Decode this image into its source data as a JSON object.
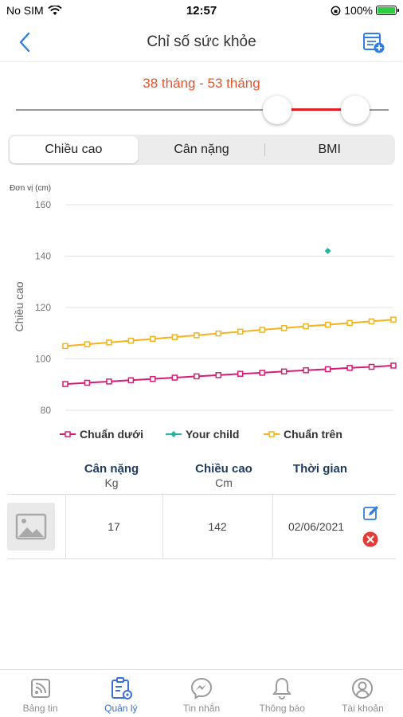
{
  "status": {
    "carrier": "No SIM",
    "time": "12:57",
    "battery": "100%"
  },
  "header": {
    "title": "Chỉ số sức khỏe"
  },
  "range": {
    "label": "38 tháng - 53 tháng"
  },
  "tabs": [
    {
      "label": "Chiều cao"
    },
    {
      "label": "Cân nặng"
    },
    {
      "label": "BMI"
    }
  ],
  "chart_data": {
    "type": "line",
    "unit_label": "Đơn vị (cm)",
    "ylabel": "Chiều cao",
    "ylim": [
      80,
      160
    ],
    "yticks": [
      80,
      100,
      120,
      140,
      160
    ],
    "x": [
      38,
      39,
      40,
      41,
      42,
      43,
      44,
      45,
      46,
      47,
      48,
      49,
      50,
      51,
      52,
      53
    ],
    "series": [
      {
        "name": "Chuẩn dưới",
        "color": "#d81b74",
        "values": [
          90.2,
          90.7,
          91.2,
          91.7,
          92.2,
          92.7,
          93.2,
          93.7,
          94.2,
          94.6,
          95.1,
          95.6,
          96.0,
          96.5,
          96.9,
          97.4
        ]
      },
      {
        "name": "Your child",
        "color": "#26b3a3",
        "points": [
          {
            "x": 50,
            "y": 142
          }
        ]
      },
      {
        "name": "Chuẩn trên",
        "color": "#f5b21c",
        "values": [
          105.0,
          105.7,
          106.4,
          107.1,
          107.8,
          108.5,
          109.2,
          109.9,
          110.6,
          111.3,
          112.0,
          112.7,
          113.3,
          114.0,
          114.6,
          115.3
        ]
      }
    ],
    "legend": "bottom"
  },
  "table": {
    "headers": [
      {
        "title": "Cân nặng",
        "unit": "Kg"
      },
      {
        "title": "Chiều cao",
        "unit": "Cm"
      },
      {
        "title": "Thời gian",
        "unit": ""
      }
    ],
    "rows": [
      {
        "weight": "17",
        "height": "142",
        "date": "02/06/2021"
      }
    ]
  },
  "tabbar": [
    {
      "label": "Bảng tin",
      "icon": "news-icon"
    },
    {
      "label": "Quản lý",
      "icon": "manage-icon",
      "active": true
    },
    {
      "label": "Tin nhắn",
      "icon": "messenger-icon"
    },
    {
      "label": "Thông báo",
      "icon": "bell-icon"
    },
    {
      "label": "Tài khoản",
      "icon": "user-icon"
    }
  ],
  "colors": {
    "accent": "#3a6fd8",
    "range_text": "#e8532b",
    "slider_active": "#e31e24",
    "delete": "#e53935"
  }
}
